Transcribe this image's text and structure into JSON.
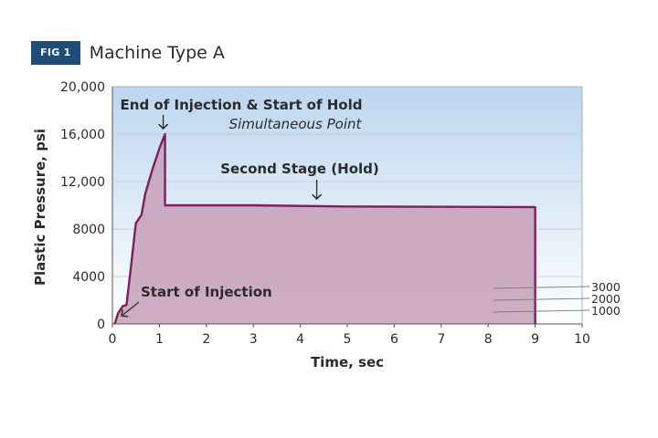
{
  "figure": {
    "badge": "FIG 1",
    "title": "Machine Type A"
  },
  "colors": {
    "badge_bg": "#1f4d7a",
    "fill": "#c9a3bd",
    "line": "#7d1f5e",
    "plot_bg_top": "#bcd6ee",
    "plot_bg_bottom": "#ffffff",
    "grid": "#c8d2dc",
    "text": "#2b2b2b"
  },
  "chart_data": {
    "type": "area",
    "title": "Machine Type A",
    "xlabel": "Time, sec",
    "ylabel": "Plastic Pressure, psi",
    "xlim": [
      0,
      10
    ],
    "ylim": [
      0,
      20000
    ],
    "x_ticks": [
      "0",
      "1",
      "2",
      "3",
      "4",
      "5",
      "6",
      "7",
      "8",
      "9",
      "10"
    ],
    "y_ticks": [
      {
        "value": 0,
        "label": "0"
      },
      {
        "value": 4000,
        "label": "4000"
      },
      {
        "value": 8000,
        "label": "8000"
      },
      {
        "value": 12000,
        "label": "12,000"
      },
      {
        "value": 16000,
        "label": "16,000"
      },
      {
        "value": 20000,
        "label": "20,000"
      }
    ],
    "grid": true,
    "series": [
      {
        "points": [
          {
            "x": 0.05,
            "y": 0
          },
          {
            "x": 0.12,
            "y": 900
          },
          {
            "x": 0.22,
            "y": 1500
          },
          {
            "x": 0.3,
            "y": 1600
          },
          {
            "x": 0.4,
            "y": 5000
          },
          {
            "x": 0.5,
            "y": 8500
          },
          {
            "x": 0.62,
            "y": 9200
          },
          {
            "x": 0.7,
            "y": 11000
          },
          {
            "x": 0.85,
            "y": 13000
          },
          {
            "x": 1.0,
            "y": 14800
          },
          {
            "x": 1.12,
            "y": 16000
          },
          {
            "x": 1.12,
            "y": 10000
          },
          {
            "x": 3.0,
            "y": 10000
          },
          {
            "x": 5.0,
            "y": 9900
          },
          {
            "x": 9.0,
            "y": 9850
          },
          {
            "x": 9.0,
            "y": 0
          }
        ]
      }
    ],
    "annotations": [
      {
        "text": "End of Injection & Start of Hold",
        "x": 1.12,
        "y": 16000,
        "style": "bold"
      },
      {
        "text": "Simultaneous Point",
        "style": "italic"
      },
      {
        "text": "Second Stage (Hold)",
        "x": 4.35,
        "y": 9900,
        "style": "bold"
      },
      {
        "text": "Start of Injection",
        "x": 0.12,
        "y": 300,
        "style": "bold"
      }
    ],
    "right_scale": [
      {
        "value": 3000,
        "label": "3000"
      },
      {
        "value": 2000,
        "label": "2000"
      },
      {
        "value": 1000,
        "label": "1000"
      }
    ]
  }
}
